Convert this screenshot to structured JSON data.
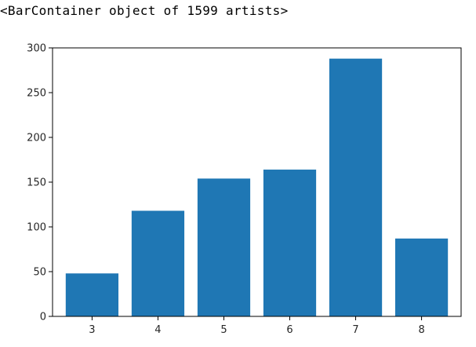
{
  "output": {
    "repr_text": "<BarContainer object of 1599 artists>"
  },
  "chart_data": {
    "type": "bar",
    "categories": [
      "3",
      "4",
      "5",
      "6",
      "7",
      "8"
    ],
    "x": [
      3,
      4,
      5,
      6,
      7,
      8
    ],
    "values": [
      48,
      118,
      154,
      164,
      288,
      87
    ],
    "title": "",
    "xlabel": "",
    "ylabel": "",
    "ylim": [
      0,
      300
    ],
    "yticks": [
      0,
      50,
      100,
      150,
      200,
      250,
      300
    ],
    "xticks": [
      3,
      4,
      5,
      6,
      7,
      8
    ],
    "bar_color": "#1f77b4",
    "grid": false,
    "legend": "none"
  }
}
